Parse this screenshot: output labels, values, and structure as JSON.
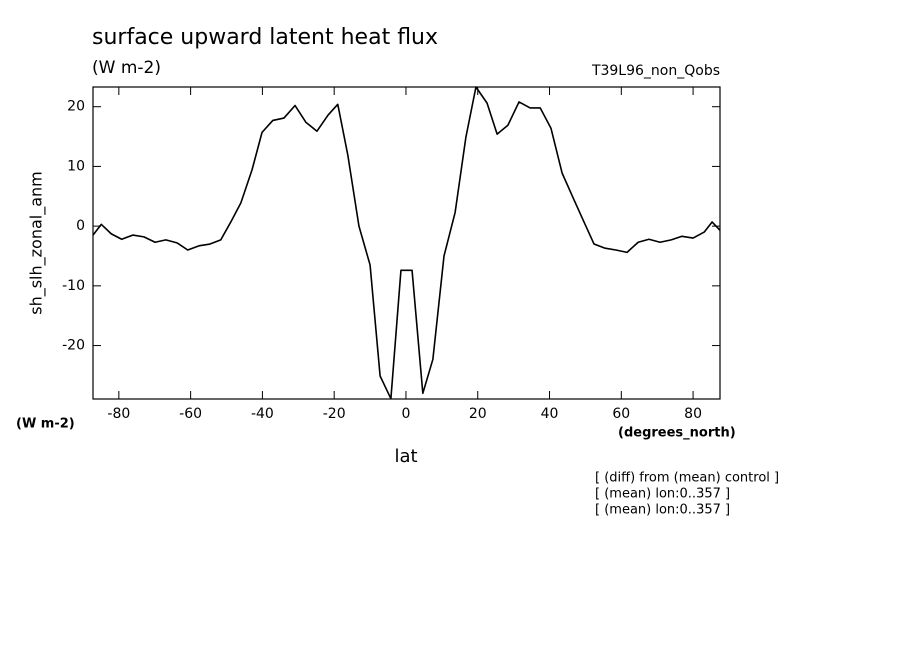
{
  "chart_data": {
    "type": "line",
    "title": "surface upward latent heat flux",
    "subtitle": "(W m-2)",
    "dataset": "T39L96_non_Qobs",
    "y_label": "sh_slh_zonal_anm",
    "y_units": "(W m-2)",
    "x_label": "lat",
    "x_units": "(degrees_north)",
    "notes": [
      "[ (diff) from (mean) control ]",
      "[ (mean) lon:0..357 ]",
      "[ (mean) lon:0..357 ]"
    ],
    "x": [
      -87.2,
      -84.9,
      -82.1,
      -79.2,
      -76.1,
      -73.0,
      -69.9,
      -66.9,
      -63.8,
      -60.8,
      -57.7,
      -54.6,
      -51.6,
      -48.8,
      -46.0,
      -42.9,
      -40.1,
      -37.1,
      -34.0,
      -30.9,
      -27.9,
      -24.8,
      -21.7,
      -19.0,
      -16.2,
      -13.1,
      -10.0,
      -7.2,
      -4.2,
      -1.4,
      1.7,
      4.7,
      7.5,
      10.6,
      13.7,
      16.7,
      19.5,
      22.6,
      25.4,
      28.4,
      31.5,
      34.6,
      37.4,
      40.4,
      43.5,
      46.6,
      49.6,
      52.4,
      55.5,
      58.5,
      61.6,
      64.7,
      67.7,
      70.8,
      73.9,
      76.9,
      80.0,
      83.1,
      85.3,
      87.5
    ],
    "values": [
      -1.5,
      0.3,
      -1.3,
      -2.2,
      -1.5,
      -1.8,
      -2.7,
      -2.3,
      -2.8,
      -4.0,
      -3.3,
      -3.0,
      -2.3,
      0.7,
      3.9,
      9.4,
      15.7,
      17.7,
      18.1,
      20.2,
      17.4,
      15.9,
      18.6,
      20.4,
      11.9,
      0.0,
      -6.5,
      -25.1,
      -28.9,
      -7.4,
      -7.4,
      -28.0,
      -22.3,
      -5.0,
      2.3,
      14.9,
      23.3,
      20.6,
      15.4,
      16.9,
      20.8,
      19.8,
      19.8,
      16.4,
      8.9,
      4.7,
      0.7,
      -3.0,
      -3.7,
      -4.0,
      -4.4,
      -2.7,
      -2.2,
      -2.7,
      -2.3,
      -1.7,
      -2.0,
      -1.0,
      0.7,
      -0.7
    ],
    "color": "#000000",
    "xlim": [
      -87.2,
      87.5
    ],
    "ylim": [
      -28.95,
      23.3
    ],
    "xticks": [
      -80,
      -60,
      -40,
      -20,
      0,
      20,
      40,
      60,
      80
    ],
    "yticks": [
      -20,
      -10,
      0,
      10,
      20
    ]
  }
}
